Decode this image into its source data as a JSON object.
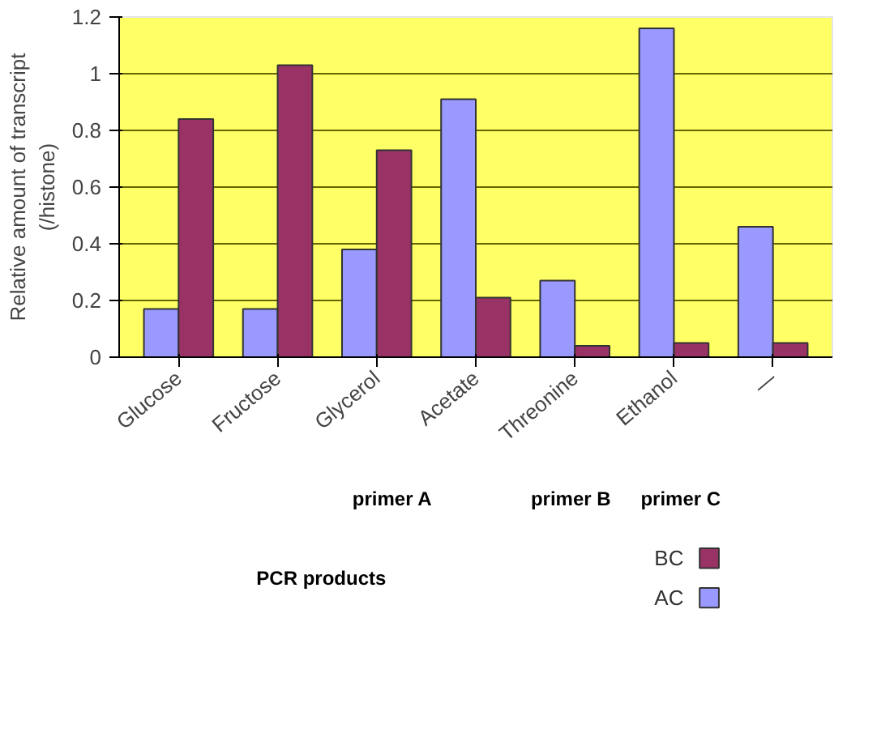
{
  "chart_data": {
    "type": "bar",
    "ylabel": "Relative amount of transcript\n(/histone)",
    "categories": [
      "Glucose",
      "Fructose",
      "Glycerol",
      "Acetate",
      "Threonine",
      "Ethanol",
      "—"
    ],
    "series": [
      {
        "name": "AC",
        "color": "#9999ff",
        "values": [
          0.17,
          0.17,
          0.38,
          0.91,
          0.27,
          1.16,
          0.46
        ]
      },
      {
        "name": "BC",
        "color": "#993366",
        "values": [
          0.84,
          1.03,
          0.73,
          0.21,
          0.04,
          0.05,
          0.05
        ]
      }
    ],
    "ylim": [
      0,
      1.2
    ],
    "yticks": [
      0,
      0.2,
      0.4,
      0.6,
      0.8,
      1,
      1.2
    ],
    "grid": "y",
    "legend": "bottom right",
    "annotations": [
      "primer A",
      "primer B",
      "primer C",
      "PCR products"
    ]
  }
}
